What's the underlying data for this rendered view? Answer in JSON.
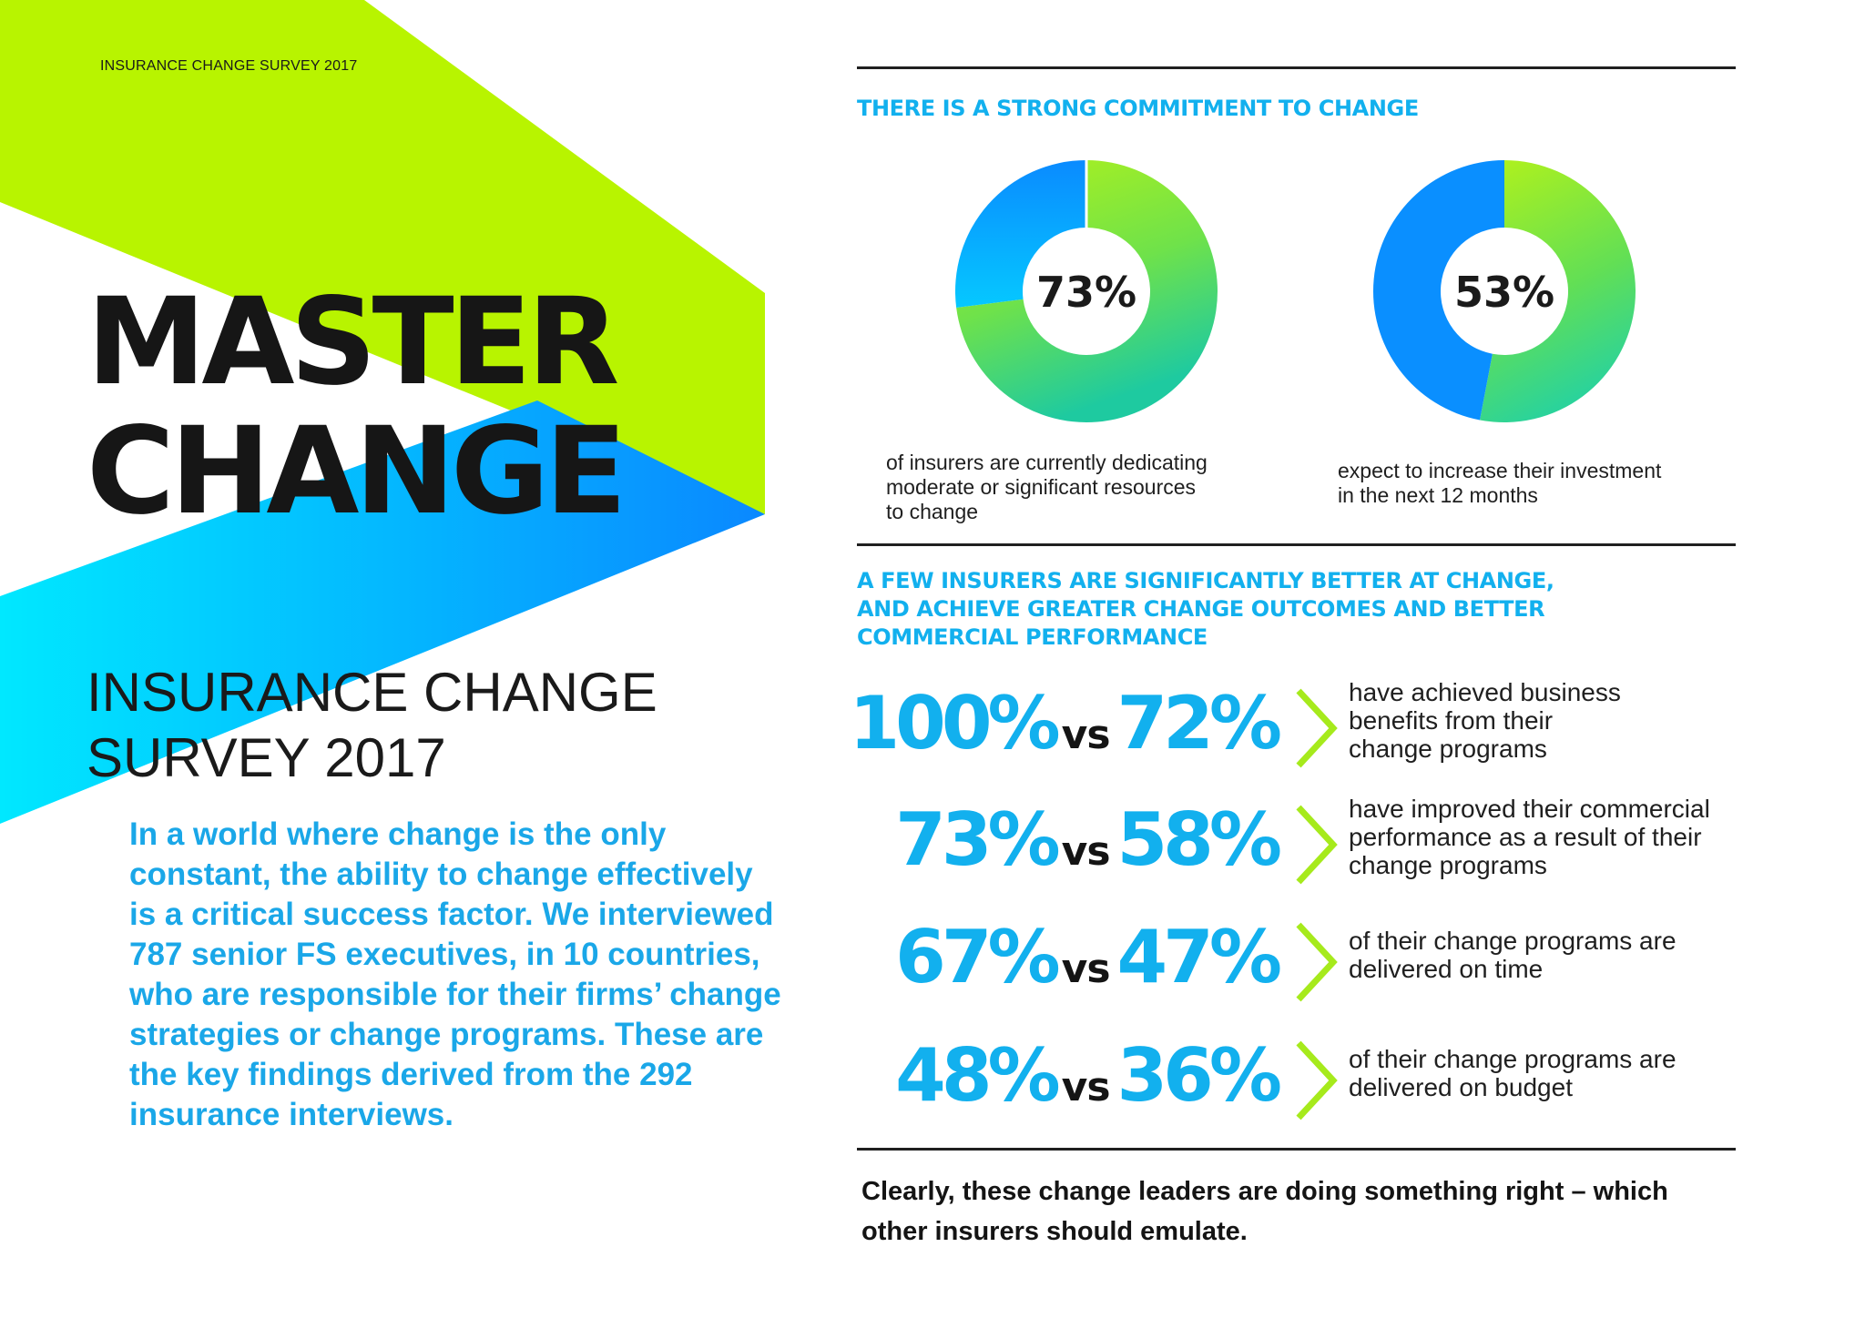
{
  "header": {
    "kicker": "INSURANCE CHANGE SURVEY 2017"
  },
  "hero": {
    "line1": "MASTER",
    "line2": "CHANGE"
  },
  "survey_title": {
    "line1": "INSURANCE CHANGE",
    "line2": "SURVEY 2017"
  },
  "intro_text": "In a world where change is the only constant, the ability to change effectively is a critical success factor. We interviewed 787 senior FS executives, in 10 countries, who are responsible for their firms’ change strategies or change programs. These are the key findings derived from the 292 insurance interviews.",
  "commitment": {
    "heading": "THERE IS A STRONG COMMITMENT TO CHANGE",
    "donuts": [
      {
        "value_label": "73%",
        "value": 73,
        "caption": [
          "of insurers are currently dedicating",
          "moderate or significant resources",
          "to change"
        ]
      },
      {
        "value_label": "53%",
        "value": 53,
        "caption": [
          "expect to increase their investment",
          "in the next 12 months"
        ]
      }
    ]
  },
  "leaders": {
    "heading": [
      "A FEW INSURERS ARE SIGNIFICANTLY BETTER AT CHANGE,",
      "AND ACHIEVE GREATER CHANGE OUTCOMES AND BETTER",
      "COMMERCIAL PERFORMANCE"
    ],
    "vs_label": "vs",
    "stats": [
      {
        "leaders": "100%",
        "others": "72%",
        "description": [
          "have achieved business",
          "benefits from their",
          "change programs"
        ]
      },
      {
        "leaders": "73%",
        "others": "58%",
        "description": [
          "have improved their commercial",
          "performance as a result of their",
          "change programs"
        ]
      },
      {
        "leaders": "67%",
        "others": "47%",
        "description": [
          "of their change programs are",
          "delivered on time"
        ]
      },
      {
        "leaders": "48%",
        "others": "36%",
        "description": [
          "of their change programs are",
          "delivered on budget"
        ]
      }
    ]
  },
  "conclusion": "Clearly, these change leaders are doing something right – which other insurers should emulate.",
  "colors": {
    "lime": "#b8f400",
    "blue_deep": "#0a8bff",
    "cyan": "#00e5ff",
    "heading_blue": "#12b0ee",
    "body_blue": "#1aa7e8",
    "chevron_green": "#a6ea1c"
  }
}
